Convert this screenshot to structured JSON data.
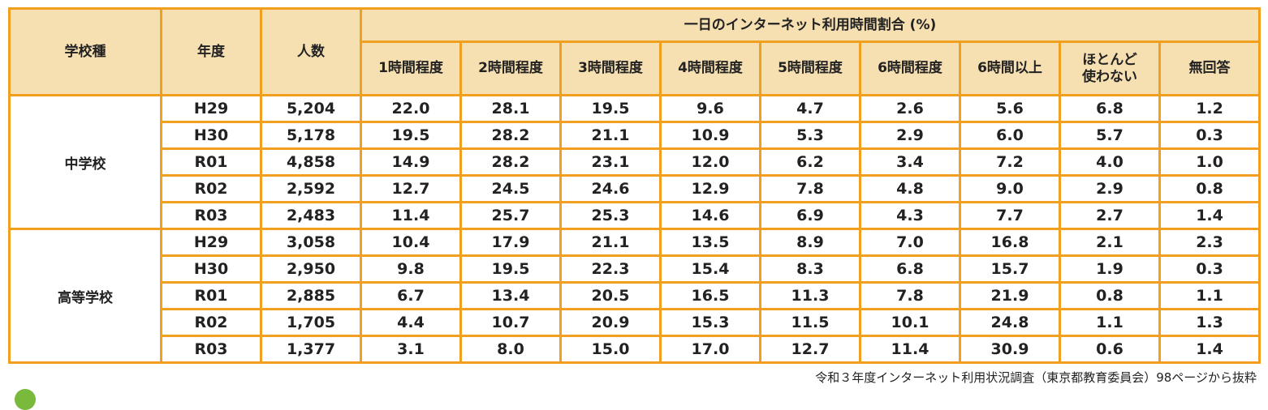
{
  "table": {
    "col_school_type": "学校種",
    "col_year": "年度",
    "col_count": "人数",
    "group_header": "一日のインターネット利用時間割合 (%)",
    "sub_headers": [
      "1時間程度",
      "2時間程度",
      "3時間程度",
      "4時間程度",
      "5時間程度",
      "6時間程度",
      "6時間以上",
      "ほとんど\n使わない",
      "無回答"
    ],
    "groups": [
      {
        "school": "中学校",
        "rows": [
          {
            "year": "H29",
            "count": "5,204",
            "values": [
              "22.0",
              "28.1",
              "19.5",
              "9.6",
              "4.7",
              "2.6",
              "5.6",
              "6.8",
              "1.2"
            ]
          },
          {
            "year": "H30",
            "count": "5,178",
            "values": [
              "19.5",
              "28.2",
              "21.1",
              "10.9",
              "5.3",
              "2.9",
              "6.0",
              "5.7",
              "0.3"
            ]
          },
          {
            "year": "R01",
            "count": "4,858",
            "values": [
              "14.9",
              "28.2",
              "23.1",
              "12.0",
              "6.2",
              "3.4",
              "7.2",
              "4.0",
              "1.0"
            ]
          },
          {
            "year": "R02",
            "count": "2,592",
            "values": [
              "12.7",
              "24.5",
              "24.6",
              "12.9",
              "7.8",
              "4.8",
              "9.0",
              "2.9",
              "0.8"
            ]
          },
          {
            "year": "R03",
            "count": "2,483",
            "values": [
              "11.4",
              "25.7",
              "25.3",
              "14.6",
              "6.9",
              "4.3",
              "7.7",
              "2.7",
              "1.4"
            ]
          }
        ]
      },
      {
        "school": "高等学校",
        "rows": [
          {
            "year": "H29",
            "count": "3,058",
            "values": [
              "10.4",
              "17.9",
              "21.1",
              "13.5",
              "8.9",
              "7.0",
              "16.8",
              "2.1",
              "2.3"
            ]
          },
          {
            "year": "H30",
            "count": "2,950",
            "values": [
              "9.8",
              "19.5",
              "22.3",
              "15.4",
              "8.3",
              "6.8",
              "15.7",
              "1.9",
              "0.3"
            ]
          },
          {
            "year": "R01",
            "count": "2,885",
            "values": [
              "6.7",
              "13.4",
              "20.5",
              "16.5",
              "11.3",
              "7.8",
              "21.9",
              "0.8",
              "1.1"
            ]
          },
          {
            "year": "R02",
            "count": "1,705",
            "values": [
              "4.4",
              "10.7",
              "20.9",
              "15.3",
              "11.5",
              "10.1",
              "24.8",
              "1.1",
              "1.3"
            ]
          },
          {
            "year": "R03",
            "count": "1,377",
            "values": [
              "3.1",
              "8.0",
              "15.0",
              "17.0",
              "12.7",
              "11.4",
              "30.9",
              "0.6",
              "1.4"
            ]
          }
        ]
      }
    ]
  },
  "caption": "令和３年度インターネット利用状況調査（東京都教育委員会）98ページから抜粋",
  "colors": {
    "border": "#f0a01e",
    "header_bg": "#f6dfb1",
    "dot": "#79b93b"
  }
}
